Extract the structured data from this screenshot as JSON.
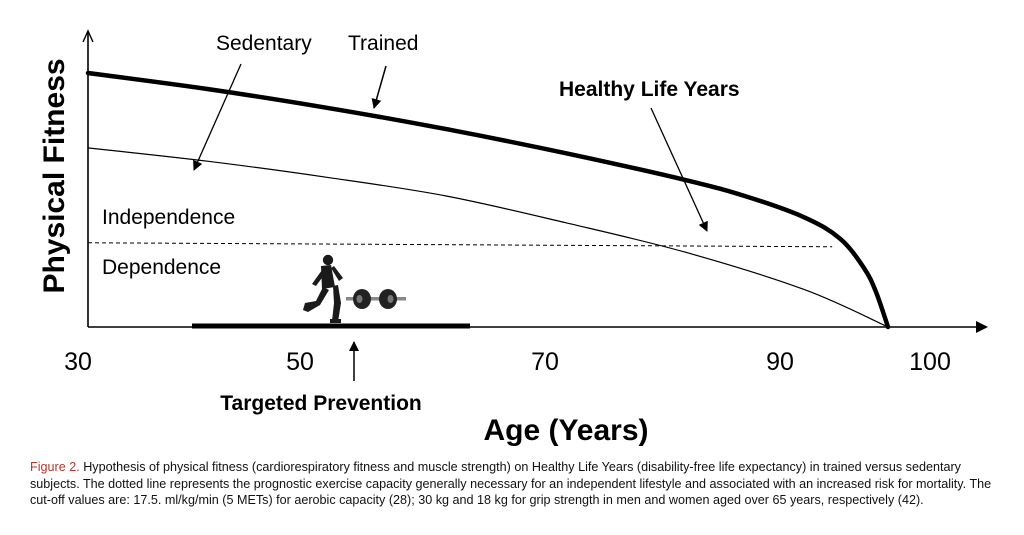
{
  "chart_data": {
    "type": "line",
    "ylabel": "Physical Fitness",
    "xlabel": "Age (Years)",
    "xlim": [
      30,
      100
    ],
    "x_ticks": [
      "30",
      "50",
      "70",
      "90",
      "100"
    ],
    "series": [
      {
        "name": "Trained",
        "x": [
          30,
          40,
          50,
          60,
          70,
          80,
          85,
          90,
          93,
          95,
          96,
          97
        ],
        "values": [
          0.95,
          0.89,
          0.82,
          0.74,
          0.65,
          0.55,
          0.49,
          0.41,
          0.33,
          0.22,
          0.13,
          0.0
        ]
      },
      {
        "name": "Sedentary",
        "x": [
          30,
          40,
          50,
          60,
          70,
          80,
          90,
          97
        ],
        "values": [
          0.67,
          0.62,
          0.56,
          0.49,
          0.39,
          0.28,
          0.14,
          0.0
        ]
      }
    ],
    "threshold": {
      "value": 0.33,
      "x_range": [
        30,
        94
      ],
      "label_above": "Independence",
      "label_below": "Dependence",
      "style": "dotted"
    },
    "prevention_bar": {
      "x_range": [
        40,
        64
      ]
    },
    "annotations": {
      "healthy_life_years": {
        "text": "Healthy Life Years",
        "x": 83,
        "y": 0.34
      },
      "targeted_prevention": {
        "text": "Targeted Prevention",
        "x": 53
      }
    }
  },
  "caption": {
    "figure_label": "Figure 2.",
    "text": "Hypothesis of physical fitness (cardiorespiratory fitness and muscle strength) on Healthy Life Years (disability-free life expectancy) in trained versus sedentary subjects. The dotted line represents the prognostic exercise capacity generally necessary for an independent lifestyle and associated with an increased risk for mortality. The cut-off values are: 17.5. ml/kg/min (5 METs) for aerobic capacity (28); 30 kg and 18 kg for grip strength in men and women aged over 65 years, respectively (42)."
  },
  "icons": [
    "runner-icon",
    "dumbbell-icon"
  ]
}
